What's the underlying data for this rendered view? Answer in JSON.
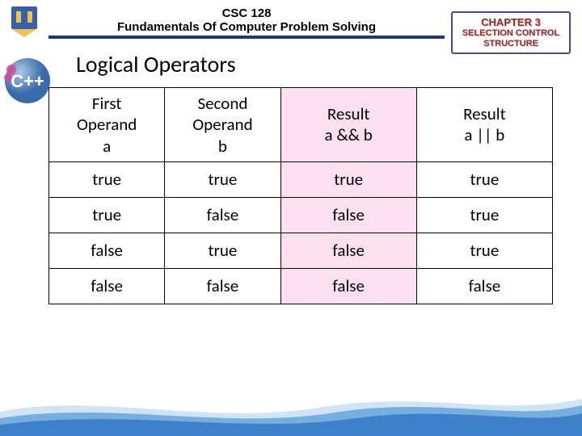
{
  "header": {
    "course_code": "CSC 128",
    "course_title": "Fundamentals Of Computer Problem Solving",
    "underline_color": "#1f3a6e"
  },
  "chapter_badge": {
    "line1": "CHAPTER 3",
    "line2": "SELECTION CONTROL STRUCTURE",
    "text_color": "#9a2a2a",
    "border_color": "#4a4a8a"
  },
  "section_title": "Logical Operators",
  "table": {
    "columns": [
      {
        "header": "First Operand a",
        "highlight": false
      },
      {
        "header": "Second Operand b",
        "highlight": false
      },
      {
        "header": "Result a && b",
        "highlight": true,
        "highlight_color": "#fce0ef"
      },
      {
        "header": "Result a || b",
        "highlight": false
      }
    ],
    "rows": [
      [
        "true",
        "true",
        "true",
        "true"
      ],
      [
        "true",
        "false",
        "false",
        "true"
      ],
      [
        "false",
        "true",
        "false",
        "true"
      ],
      [
        "false",
        "false",
        "false",
        "false"
      ]
    ],
    "border_color": "#000000",
    "font_size": 21
  },
  "icons": {
    "uni_logo": "university-crest",
    "cpp_logo": "cpp-logo"
  },
  "footer": {
    "wave_colors": [
      "#cfe4f7",
      "#6aa7dc",
      "#3a7bc8"
    ]
  }
}
